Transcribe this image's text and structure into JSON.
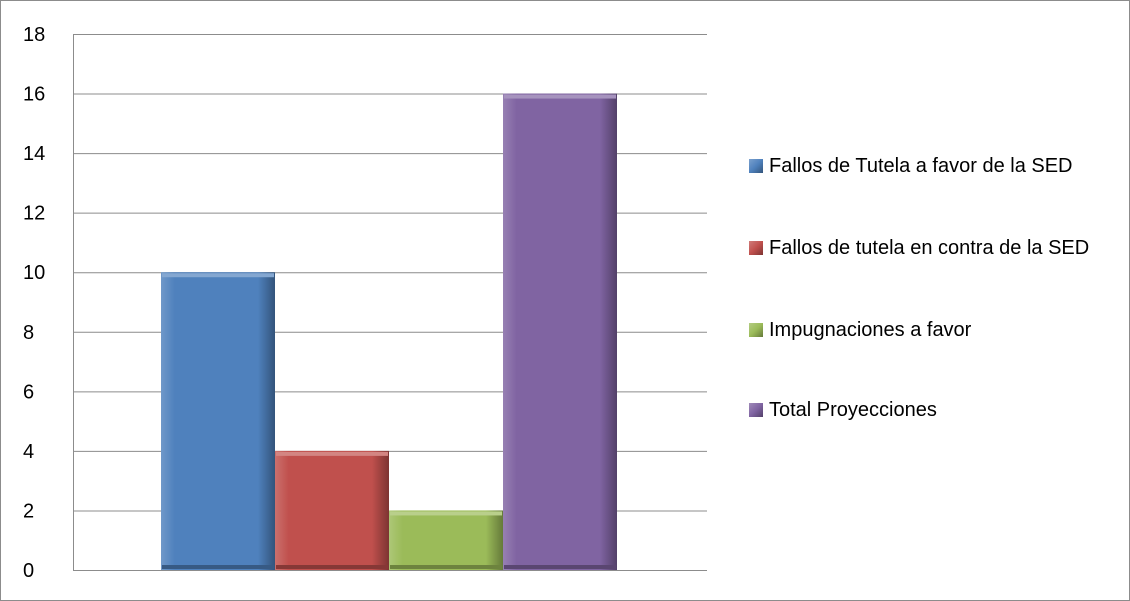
{
  "chart_data": {
    "type": "bar",
    "title": "",
    "xlabel": "",
    "ylabel": "",
    "ylim": [
      0,
      18
    ],
    "yticks": [
      0,
      2,
      4,
      6,
      8,
      10,
      12,
      14,
      16,
      18
    ],
    "grid": true,
    "legend_position": "right",
    "series": [
      {
        "name": "Fallos de Tutela a favor de la SED",
        "values": [
          10
        ],
        "color": "#4f81bd"
      },
      {
        "name": "Fallos de tutela en contra de la SED",
        "values": [
          4
        ],
        "color": "#c0504d"
      },
      {
        "name": "Impugnaciones a favor",
        "values": [
          2
        ],
        "color": "#9bbb59"
      },
      {
        "name": "Total Proyecciones",
        "values": [
          16
        ],
        "color": "#8064a2"
      }
    ]
  }
}
